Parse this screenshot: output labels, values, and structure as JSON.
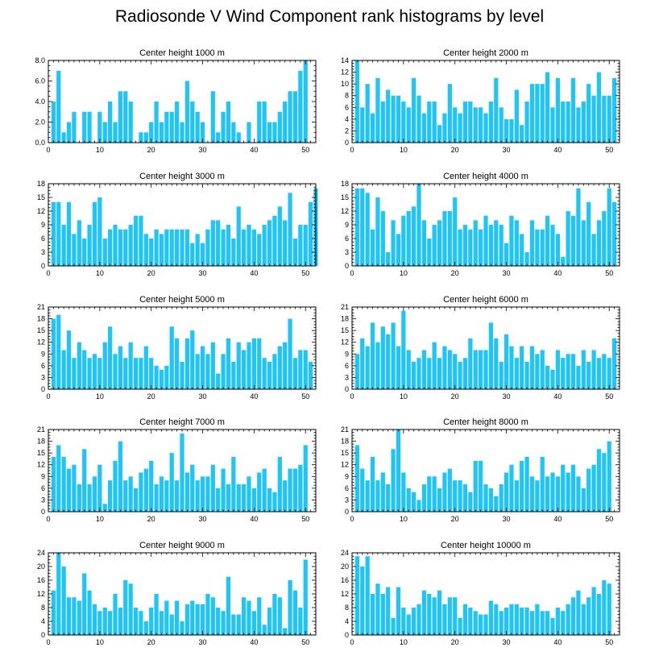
{
  "title": "Radiosonde V Wind Component rank histograms by level",
  "colors": {
    "bar": "#1ec5f6",
    "axis": "#000000",
    "background": "#ffffff"
  },
  "chart_data": [
    {
      "type": "bar",
      "title": "Center height 1000 m",
      "ylim": [
        0,
        8
      ],
      "yticks": [
        0,
        2,
        4,
        6,
        8
      ],
      "ytick_labels": [
        "0.0",
        "2.0",
        "4.0",
        "6.0",
        "8.0"
      ],
      "xlim": [
        0,
        52
      ],
      "xticks": [
        0,
        10,
        20,
        30,
        40,
        50
      ],
      "values": [
        4,
        7,
        1,
        2,
        3,
        0,
        3,
        3,
        0,
        3,
        2,
        4,
        2,
        5,
        5,
        4,
        0,
        1,
        1,
        2,
        4,
        2,
        3,
        3,
        4,
        2,
        6,
        4,
        3,
        2,
        0,
        5,
        1,
        3,
        4,
        2,
        1,
        0,
        2,
        0,
        4,
        4,
        2,
        2,
        3,
        4,
        5,
        5,
        7,
        8
      ]
    },
    {
      "type": "bar",
      "title": "Center height 2000 m",
      "ylim": [
        0,
        14
      ],
      "yticks": [
        0,
        2,
        4,
        6,
        8,
        10,
        12,
        14
      ],
      "ytick_labels": [
        "0",
        "2",
        "4",
        "6",
        "8",
        "10",
        "12",
        "14"
      ],
      "xlim": [
        0,
        52
      ],
      "xticks": [
        0,
        10,
        20,
        30,
        40,
        50
      ],
      "values": [
        14,
        6,
        10,
        5,
        11,
        7,
        9,
        8,
        8,
        7,
        6,
        11,
        8,
        5,
        7,
        7,
        3,
        5,
        10,
        6,
        5,
        7,
        7,
        6,
        6,
        5,
        7,
        11,
        6,
        4,
        4,
        9,
        3,
        7,
        10,
        10,
        10,
        12,
        6,
        11,
        7,
        7,
        11,
        6,
        7,
        10,
        8,
        12,
        8,
        8,
        11
      ]
    },
    {
      "type": "bar",
      "title": "Center height 3000 m",
      "ylim": [
        0,
        18
      ],
      "yticks": [
        0,
        3,
        6,
        9,
        12,
        15,
        18
      ],
      "ytick_labels": [
        "0",
        "3",
        "6",
        "9",
        "12",
        "15",
        "18"
      ],
      "xlim": [
        0,
        52
      ],
      "xticks": [
        0,
        10,
        20,
        30,
        40,
        50
      ],
      "values": [
        14,
        14,
        9,
        14,
        7,
        10,
        6,
        9,
        14,
        15,
        6,
        8,
        9,
        8,
        8,
        9,
        11,
        11,
        7,
        6,
        8,
        7,
        8,
        8,
        8,
        8,
        8,
        5,
        7,
        5,
        8,
        10,
        10,
        8,
        9,
        6,
        13,
        8,
        9,
        8,
        7,
        9,
        10,
        11,
        13,
        10,
        16,
        6,
        9,
        9,
        14,
        17
      ]
    },
    {
      "type": "bar",
      "title": "Center height 4000 m",
      "ylim": [
        0,
        18
      ],
      "yticks": [
        0,
        3,
        6,
        9,
        12,
        15,
        18
      ],
      "ytick_labels": [
        "0",
        "3",
        "6",
        "9",
        "12",
        "15",
        "18"
      ],
      "xlim": [
        0,
        52
      ],
      "xticks": [
        0,
        10,
        20,
        30,
        40,
        50
      ],
      "values": [
        17,
        17,
        16,
        8,
        15,
        12,
        3,
        10,
        7,
        11,
        12,
        13,
        18,
        10,
        6,
        9,
        10,
        12,
        12,
        15,
        8,
        9,
        8,
        10,
        8,
        11,
        9,
        10,
        9,
        5,
        11,
        10,
        7,
        3,
        10,
        8,
        8,
        11,
        9,
        7,
        2,
        12,
        11,
        17,
        10,
        14,
        7,
        10,
        12,
        17,
        14
      ]
    },
    {
      "type": "bar",
      "title": "Center height 5000 m",
      "ylim": [
        0,
        21
      ],
      "yticks": [
        0,
        3,
        6,
        9,
        12,
        15,
        18,
        21
      ],
      "ytick_labels": [
        "0",
        "3",
        "6",
        "9",
        "12",
        "15",
        "18",
        "21"
      ],
      "xlim": [
        0,
        52
      ],
      "xticks": [
        0,
        10,
        20,
        30,
        40,
        50
      ],
      "values": [
        18,
        19,
        10,
        15,
        8,
        12,
        10,
        8,
        9,
        8,
        12,
        16,
        9,
        11,
        8,
        12,
        8,
        8,
        11,
        8,
        6,
        5,
        6,
        16,
        13,
        7,
        13,
        15,
        9,
        11,
        9,
        12,
        4,
        9,
        13,
        7,
        12,
        10,
        12,
        13,
        13,
        8,
        7,
        9,
        11,
        12,
        18,
        8,
        10,
        10,
        7
      ]
    },
    {
      "type": "bar",
      "title": "Center height 6000 m",
      "ylim": [
        0,
        21
      ],
      "yticks": [
        0,
        3,
        6,
        9,
        12,
        15,
        18,
        21
      ],
      "ytick_labels": [
        "0",
        "3",
        "6",
        "9",
        "12",
        "15",
        "18",
        "21"
      ],
      "xlim": [
        0,
        52
      ],
      "xticks": [
        0,
        10,
        20,
        30,
        40,
        50
      ],
      "values": [
        9,
        13,
        11,
        17,
        12,
        16,
        14,
        17,
        11,
        20,
        10,
        7,
        8,
        10,
        8,
        12,
        8,
        11,
        10,
        9,
        7,
        8,
        13,
        10,
        10,
        10,
        17,
        13,
        7,
        14,
        11,
        8,
        11,
        7,
        11,
        9,
        10,
        6,
        5,
        10,
        8,
        9,
        9,
        6,
        10,
        7,
        10,
        8,
        9,
        8,
        13
      ]
    },
    {
      "type": "bar",
      "title": "Center height 7000 m",
      "ylim": [
        0,
        21
      ],
      "yticks": [
        0,
        3,
        6,
        9,
        12,
        15,
        18,
        21
      ],
      "ytick_labels": [
        "0",
        "3",
        "6",
        "9",
        "12",
        "15",
        "18",
        "21"
      ],
      "xlim": [
        0,
        52
      ],
      "xticks": [
        0,
        10,
        20,
        30,
        40,
        50
      ],
      "values": [
        14,
        17,
        14,
        11,
        12,
        7,
        16,
        7,
        9,
        12,
        2,
        8,
        13,
        18,
        8,
        9,
        6,
        10,
        11,
        13,
        7,
        9,
        8,
        15,
        8,
        20,
        10,
        12,
        8,
        9,
        9,
        12,
        6,
        11,
        7,
        14,
        7,
        7,
        9,
        6,
        10,
        11,
        6,
        5,
        14,
        8,
        11,
        11,
        12,
        17
      ]
    },
    {
      "type": "bar",
      "title": "Center height 8000 m",
      "ylim": [
        0,
        21
      ],
      "yticks": [
        0,
        3,
        6,
        9,
        12,
        15,
        18,
        21
      ],
      "ytick_labels": [
        "0",
        "3",
        "6",
        "9",
        "12",
        "15",
        "18",
        "21"
      ],
      "xlim": [
        0,
        52
      ],
      "xticks": [
        0,
        10,
        20,
        30,
        40,
        50
      ],
      "values": [
        17,
        11,
        8,
        14,
        8,
        10,
        7,
        16,
        21,
        10,
        6,
        5,
        3,
        7,
        9,
        9,
        6,
        10,
        11,
        8,
        8,
        7,
        5,
        13,
        13,
        7,
        6,
        4,
        7,
        10,
        12,
        8,
        13,
        14,
        9,
        8,
        14,
        9,
        10,
        9,
        12,
        10,
        12,
        9,
        6,
        11,
        12,
        16,
        15,
        18
      ]
    },
    {
      "type": "bar",
      "title": "Center height 9000 m",
      "ylim": [
        0,
        24
      ],
      "yticks": [
        0,
        4,
        8,
        12,
        16,
        20,
        24
      ],
      "ytick_labels": [
        "0",
        "4",
        "8",
        "12",
        "16",
        "20",
        "24"
      ],
      "xlim": [
        0,
        52
      ],
      "xticks": [
        0,
        10,
        20,
        30,
        40,
        50
      ],
      "values": [
        13,
        24,
        20,
        11,
        11,
        10,
        18,
        13,
        9,
        7,
        8,
        7,
        12,
        8,
        16,
        15,
        8,
        7,
        4,
        8,
        12,
        7,
        10,
        6,
        10,
        4,
        9,
        10,
        9,
        9,
        12,
        11,
        8,
        7,
        17,
        6,
        6,
        11,
        10,
        7,
        11,
        3,
        8,
        12,
        11,
        2,
        16,
        13,
        8,
        22
      ]
    },
    {
      "type": "bar",
      "title": "Center height 10000 m",
      "ylim": [
        0,
        24
      ],
      "yticks": [
        0,
        4,
        8,
        12,
        16,
        20,
        24
      ],
      "ytick_labels": [
        "0",
        "4",
        "8",
        "12",
        "16",
        "20",
        "24"
      ],
      "xlim": [
        0,
        52
      ],
      "xticks": [
        0,
        10,
        20,
        30,
        40,
        50
      ],
      "values": [
        23,
        20,
        23,
        12,
        15,
        12,
        14,
        5,
        14,
        8,
        6,
        8,
        9,
        13,
        12,
        11,
        13,
        9,
        11,
        11,
        5,
        9,
        8,
        7,
        6,
        6,
        10,
        9,
        7,
        8,
        9,
        9,
        8,
        8,
        7,
        9,
        7,
        7,
        5,
        8,
        7,
        9,
        11,
        13,
        9,
        11,
        14,
        12,
        16,
        15
      ]
    }
  ]
}
